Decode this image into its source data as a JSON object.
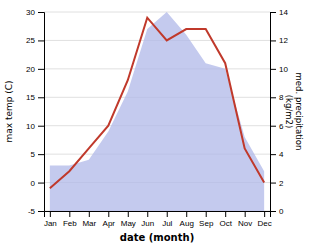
{
  "chart_data": {
    "type": "line",
    "categories": [
      "Jan",
      "Feb",
      "Mar",
      "Apr",
      "May",
      "Jun",
      "Jul",
      "Aug",
      "Sep",
      "Oct",
      "Nov",
      "Dec"
    ],
    "series": [
      {
        "type": "area",
        "color": "#b0b8e8",
        "values": [
          3,
          3,
          4,
          9,
          16,
          27,
          30,
          26,
          21,
          20,
          8,
          2
        ]
      },
      {
        "type": "line",
        "color": "#c0392b",
        "values": [
          -1,
          2,
          6,
          10,
          18,
          29,
          25,
          27,
          27,
          21,
          6,
          0
        ]
      }
    ],
    "xlabel": "date (month)",
    "ylabel": "max temp (C)",
    "y2label": "med. precipitation\n(kg/m2)",
    "ylim": [
      -5,
      30
    ],
    "yticks": [
      -5,
      0,
      5,
      10,
      15,
      20,
      25,
      30
    ],
    "y2lim": [
      0,
      14
    ],
    "y2ticks": [
      0,
      2,
      4,
      6,
      8,
      10,
      12,
      14
    ],
    "grid": true
  }
}
